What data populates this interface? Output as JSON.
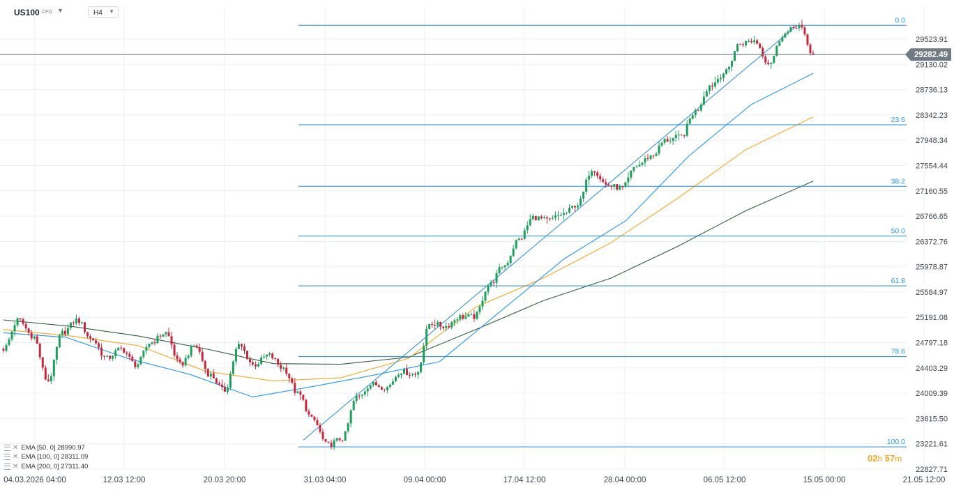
{
  "header": {
    "symbol": "US100",
    "badge": "CFD",
    "timeframe": "H4"
  },
  "colors": {
    "up": "#1e9e5a",
    "down": "#c5283d",
    "fib": "#1e88d8",
    "fib_text": "#2a9df4",
    "ema50": "#2196f3",
    "ema100": "#f5a623",
    "ema200": "#2e5e3e",
    "price_tag": "#717b86",
    "grid": "#eceff3",
    "axis_text": "#3b4650"
  },
  "indicators": [
    {
      "label": "EMA [50, 0] 28990.97"
    },
    {
      "label": "EMA [100, 0] 28311.09"
    },
    {
      "label": "EMA [200, 0] 27311.40"
    }
  ],
  "countdown": {
    "hours": "02",
    "h_unit": "h",
    "minutes": "57",
    "m_unit": "m"
  },
  "chart_data": {
    "type": "candlestick",
    "instrument": "US100",
    "interval": "H4",
    "y_ticks": [
      "29523.91",
      "29130.02",
      "28736.13",
      "28342.23",
      "27948.34",
      "27554.44",
      "27160.55",
      "26766.65",
      "26372.76",
      "25978.87",
      "25584.97",
      "25191.08",
      "24797.18",
      "24403.29",
      "24009.39",
      "23615.50",
      "23221.61",
      "22827.71"
    ],
    "x_ticks": [
      "04.03.2026 04:00",
      "12.03 12:00",
      "20.03 20:00",
      "31.03 04:00",
      "09.04 00:00",
      "17.04 12:00",
      "28.04 00:00",
      "06.05 12:00",
      "15.05 00:00",
      "21.05 12:00"
    ],
    "last_price": "29282.49",
    "ylim": [
      22720,
      29880
    ],
    "fibonacci": {
      "high": 29738,
      "low": 23174,
      "levels": [
        {
          "label": "0.0",
          "value": 29738
        },
        {
          "label": "23.6",
          "value": 28189
        },
        {
          "label": "38.2",
          "value": 27231
        },
        {
          "label": "50.0",
          "value": 26456
        },
        {
          "label": "61.8",
          "value": 25681
        },
        {
          "label": "78.6",
          "value": 24579
        },
        {
          "label": "100.0",
          "value": 23174
        }
      ]
    },
    "trend_line": {
      "from": {
        "x": "29.03 20:00",
        "y": 23280
      },
      "to": {
        "x": "13.05 16:00",
        "y": 29738
      }
    },
    "ohlc_waypoints": [
      {
        "x": "04.03.2026 04:00",
        "close": 24700
      },
      {
        "x": "05.03",
        "close": 25150
      },
      {
        "x": "06.03",
        "close": 24900
      },
      {
        "x": "07.03",
        "close": 24200
      },
      {
        "x": "09.03",
        "close": 24950
      },
      {
        "x": "10.03",
        "close": 25150
      },
      {
        "x": "11.03",
        "close": 24850
      },
      {
        "x": "12.03",
        "close": 24550
      },
      {
        "x": "13.03",
        "close": 24700
      },
      {
        "x": "14.03",
        "close": 24450
      },
      {
        "x": "16.03",
        "close": 24800
      },
      {
        "x": "17.03",
        "close": 24950
      },
      {
        "x": "18.03",
        "close": 24450
      },
      {
        "x": "19.03",
        "close": 24750
      },
      {
        "x": "20.03",
        "close": 24300
      },
      {
        "x": "21.03",
        "close": 24050
      },
      {
        "x": "22.03",
        "close": 24750
      },
      {
        "x": "23.03",
        "close": 24450
      },
      {
        "x": "24.03",
        "close": 24600
      },
      {
        "x": "25.03",
        "close": 24400
      },
      {
        "x": "26.03",
        "close": 24000
      },
      {
        "x": "27.03",
        "close": 23600
      },
      {
        "x": "28.03",
        "close": 23200
      },
      {
        "x": "29.03",
        "close": 23300
      },
      {
        "x": "30.03",
        "close": 23950
      },
      {
        "x": "31.03",
        "close": 24150
      },
      {
        "x": "01.04",
        "close": 24100
      },
      {
        "x": "02.04",
        "close": 24350
      },
      {
        "x": "03.04",
        "close": 24300
      },
      {
        "x": "04.04",
        "close": 25100
      },
      {
        "x": "06.04",
        "close": 25050
      },
      {
        "x": "08.04",
        "close": 25200
      },
      {
        "x": "09.04",
        "close": 25200
      },
      {
        "x": "10.04",
        "close": 25700
      },
      {
        "x": "12.04",
        "close": 26000
      },
      {
        "x": "14.04",
        "close": 26400
      },
      {
        "x": "16.04",
        "close": 26750
      },
      {
        "x": "17.04",
        "close": 26700
      },
      {
        "x": "19.04",
        "close": 26800
      },
      {
        "x": "21.04",
        "close": 26950
      },
      {
        "x": "23.04",
        "close": 27500
      },
      {
        "x": "25.04",
        "close": 27250
      },
      {
        "x": "27.04",
        "close": 27200
      },
      {
        "x": "28.04",
        "close": 27550
      },
      {
        "x": "29.04",
        "close": 27700
      },
      {
        "x": "30.04",
        "close": 27950
      },
      {
        "x": "01.05",
        "close": 28000
      },
      {
        "x": "02.05",
        "close": 28400
      },
      {
        "x": "04.05",
        "close": 28800
      },
      {
        "x": "05.05",
        "close": 29000
      },
      {
        "x": "06.05",
        "close": 29450
      },
      {
        "x": "08.05",
        "close": 29500
      },
      {
        "x": "09.05",
        "close": 29150
      },
      {
        "x": "11.05",
        "close": 29600
      },
      {
        "x": "13.05",
        "close": 29738
      },
      {
        "x": "14.05",
        "close": 29282
      }
    ],
    "ema_series": [
      {
        "name": "EMA [50, 0]",
        "points": [
          {
            "x": "04.03.2026 04:00",
            "y": 24950
          },
          {
            "x": "10.03",
            "y": 24880
          },
          {
            "x": "20.03",
            "y": 24550
          },
          {
            "x": "26.03",
            "y": 24300
          },
          {
            "x": "28.03",
            "y": 23950
          },
          {
            "x": "01.04",
            "y": 24120
          },
          {
            "x": "04.04",
            "y": 24300
          },
          {
            "x": "09.04",
            "y": 24500
          },
          {
            "x": "17.04",
            "y": 25300
          },
          {
            "x": "23.04",
            "y": 26100
          },
          {
            "x": "28.04",
            "y": 26700
          },
          {
            "x": "04.05",
            "y": 27700
          },
          {
            "x": "09.05",
            "y": 28500
          },
          {
            "x": "14.05",
            "y": 28990
          }
        ]
      },
      {
        "name": "EMA [100, 0]",
        "points": [
          {
            "x": "04.03.2026 04:00",
            "y": 25000
          },
          {
            "x": "12.03",
            "y": 24900
          },
          {
            "x": "20.03",
            "y": 24750
          },
          {
            "x": "28.03",
            "y": 24350
          },
          {
            "x": "01.04",
            "y": 24200
          },
          {
            "x": "04.04",
            "y": 24250
          },
          {
            "x": "09.04",
            "y": 24550
          },
          {
            "x": "17.04",
            "y": 25350
          },
          {
            "x": "23.04",
            "y": 25800
          },
          {
            "x": "28.04",
            "y": 26350
          },
          {
            "x": "04.05",
            "y": 27050
          },
          {
            "x": "09.05",
            "y": 27800
          },
          {
            "x": "14.05",
            "y": 28311
          }
        ]
      },
      {
        "name": "EMA [200, 0]",
        "points": [
          {
            "x": "04.03.2026 04:00",
            "y": 25150
          },
          {
            "x": "12.03",
            "y": 25050
          },
          {
            "x": "20.03",
            "y": 24900
          },
          {
            "x": "27.03",
            "y": 24700
          },
          {
            "x": "01.04",
            "y": 24470
          },
          {
            "x": "04.04",
            "y": 24460
          },
          {
            "x": "09.04",
            "y": 24570
          },
          {
            "x": "17.04",
            "y": 25000
          },
          {
            "x": "23.04",
            "y": 25450
          },
          {
            "x": "28.04",
            "y": 25800
          },
          {
            "x": "04.05",
            "y": 26300
          },
          {
            "x": "09.05",
            "y": 26850
          },
          {
            "x": "14.05",
            "y": 27311
          }
        ]
      }
    ]
  }
}
